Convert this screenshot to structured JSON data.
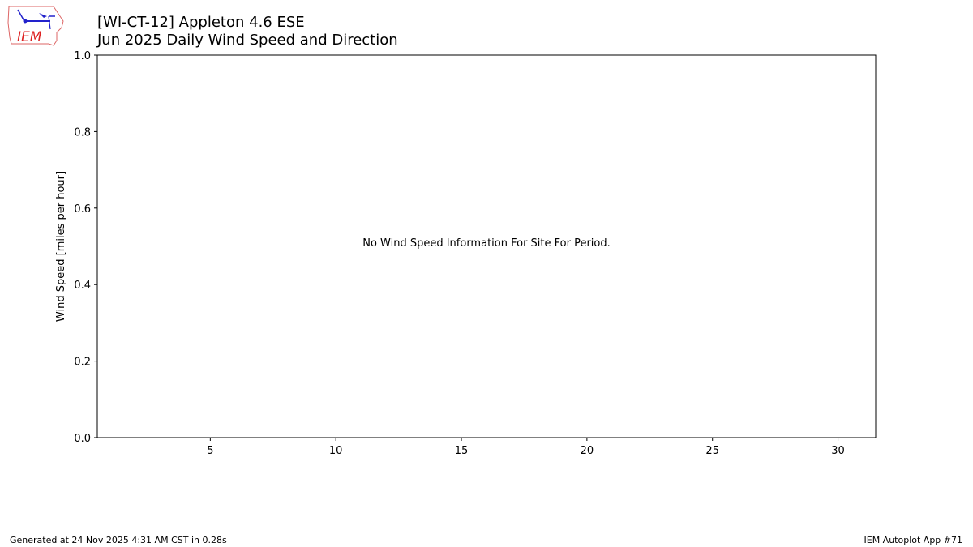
{
  "header": {
    "title_line1": "[WI-CT-12] Appleton 4.6 ESE",
    "title_line2": "Jun 2025 Daily Wind Speed and Direction",
    "logo_text": "IEM"
  },
  "footer": {
    "generated": "Generated at 24 Nov 2025 4:31 AM CST in 0.28s",
    "app": "IEM Autoplot App #71"
  },
  "chart_data": {
    "type": "bar",
    "title": "[WI-CT-12] Appleton 4.6 ESE\nJun 2025 Daily Wind Speed and Direction",
    "xlabel": "",
    "ylabel": "Wind Speed [miles per hour]",
    "xlim": [
      0.5,
      31.5
    ],
    "ylim": [
      0,
      1
    ],
    "xticks": [
      5,
      10,
      15,
      20,
      25,
      30
    ],
    "xtick_labels": [
      "5",
      "10",
      "15",
      "20",
      "25",
      "30"
    ],
    "yticks": [
      0,
      0.2,
      0.4,
      0.6,
      0.8,
      1.0
    ],
    "ytick_labels": [
      "0.0",
      "0.2",
      "0.4",
      "0.6",
      "0.8",
      "1.0"
    ],
    "series": [],
    "annotation": "No Wind Speed Information For Site For Period.",
    "grid": false
  }
}
